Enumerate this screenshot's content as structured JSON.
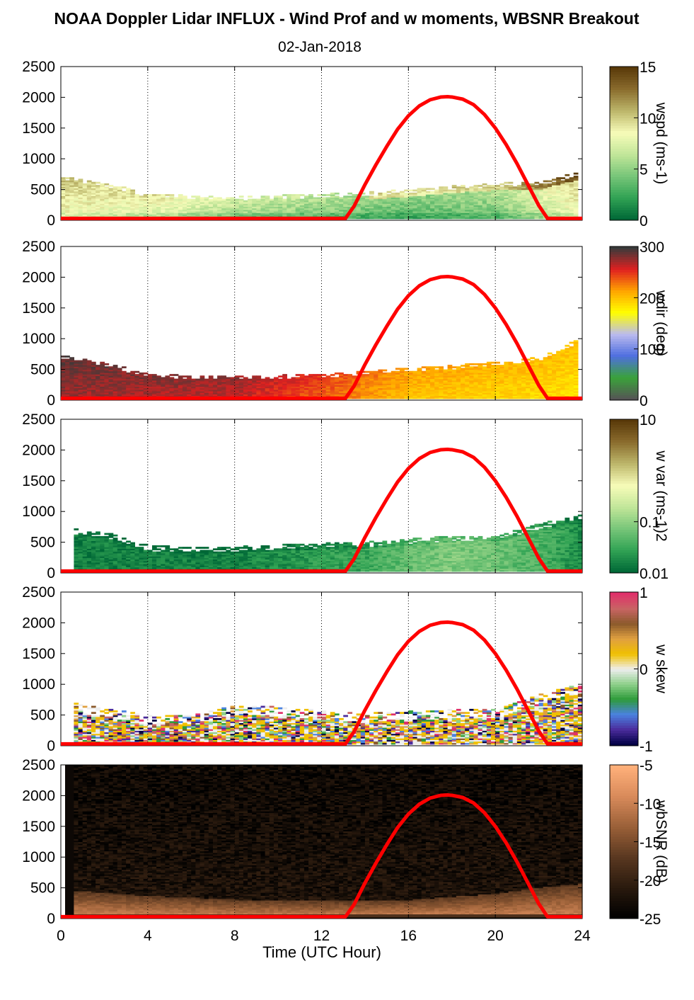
{
  "title": "NOAA Doppler Lidar INFLUX - Wind Prof and w moments, WBSNR Breakout",
  "subtitle": "02-Jan-2018",
  "chart_data": {
    "type": "heatmap",
    "xlabel": "Time (UTC Hour)",
    "xlim": [
      0,
      24
    ],
    "xticks": [
      "0",
      "4",
      "8",
      "12",
      "16",
      "20",
      "24"
    ],
    "ylim": [
      0,
      2500
    ],
    "yticks": [
      "0",
      "500",
      "1000",
      "1500",
      "2000",
      "2500"
    ],
    "sun_elevation_curve": {
      "color": "#ff0000",
      "hours": [
        13.1,
        13.5,
        14,
        14.5,
        15,
        15.5,
        16,
        16.5,
        17,
        17.5,
        17.8,
        18,
        18.5,
        19,
        19.5,
        20,
        20.5,
        21,
        21.5,
        22,
        22.4
      ],
      "values": [
        0,
        230,
        580,
        900,
        1200,
        1480,
        1700,
        1860,
        1960,
        2005,
        2010,
        2005,
        1970,
        1880,
        1720,
        1500,
        1230,
        920,
        580,
        240,
        0
      ],
      "baseline": 30
    },
    "panels": [
      {
        "id": "wspd",
        "colorbar_label": "wspd (ms-1)",
        "colorbar_ticks": [
          "0",
          "5",
          "10",
          "15"
        ],
        "colorbar_range": [
          0,
          15
        ],
        "colormap": [
          "#006837",
          "#31a354",
          "#78c679",
          "#c2e699",
          "#f7fcb9",
          "#bdb76b",
          "#8b6d2e",
          "#5a3a0a"
        ],
        "boundary_layer_top": [
          [
            0,
            700
          ],
          [
            2,
            600
          ],
          [
            4,
            420
          ],
          [
            6,
            400
          ],
          [
            8,
            380
          ],
          [
            10,
            400
          ],
          [
            12,
            420
          ],
          [
            14,
            450
          ],
          [
            16,
            500
          ],
          [
            18,
            560
          ],
          [
            20,
            600
          ],
          [
            22,
            620
          ],
          [
            23.8,
            780
          ]
        ],
        "typical_values": [
          [
            0,
            8
          ],
          [
            4,
            7
          ],
          [
            8,
            5
          ],
          [
            12,
            4
          ],
          [
            16,
            3
          ],
          [
            20,
            4
          ],
          [
            23.8,
            8
          ]
        ]
      },
      {
        "id": "wdir",
        "colorbar_label": "wdir (deg)",
        "colorbar_ticks": [
          "0",
          "100",
          "200",
          "300"
        ],
        "colorbar_range": [
          0,
          360
        ],
        "colormap": [
          "#555555",
          "#3aa33a",
          "#4f6fe0",
          "#bbbbee",
          "#ffff00",
          "#ffa500",
          "#e02020",
          "#3a3a3a"
        ],
        "boundary_layer_top": [
          [
            0,
            720
          ],
          [
            2,
            600
          ],
          [
            4,
            420
          ],
          [
            6,
            400
          ],
          [
            8,
            380
          ],
          [
            10,
            400
          ],
          [
            12,
            420
          ],
          [
            14,
            470
          ],
          [
            16,
            520
          ],
          [
            18,
            560
          ],
          [
            20,
            620
          ],
          [
            22,
            700
          ],
          [
            23.8,
            1000
          ]
        ],
        "typical_values": [
          [
            0,
            330
          ],
          [
            4,
            320
          ],
          [
            8,
            315
          ],
          [
            12,
            280
          ],
          [
            16,
            240
          ],
          [
            20,
            230
          ],
          [
            23.8,
            220
          ]
        ]
      },
      {
        "id": "w_var",
        "colorbar_label": "w var (ms-1)2",
        "colorbar_ticks": [
          "0.01",
          "0.1",
          "10"
        ],
        "colorbar_range": [
          0.01,
          10
        ],
        "colormap": [
          "#006837",
          "#31a354",
          "#78c679",
          "#c2e699",
          "#f7fcb9",
          "#bdb76b",
          "#8b6d2e",
          "#5a3a0a"
        ],
        "boundary_layer_top": [
          [
            0.2,
            720
          ],
          [
            2,
            650
          ],
          [
            4,
            430
          ],
          [
            6,
            420
          ],
          [
            8,
            420
          ],
          [
            10,
            450
          ],
          [
            12,
            480
          ],
          [
            14,
            500
          ],
          [
            16,
            550
          ],
          [
            18,
            600
          ],
          [
            20,
            600
          ],
          [
            22,
            800
          ],
          [
            24,
            950
          ]
        ],
        "typical_values": [
          [
            0,
            0.015
          ],
          [
            8,
            0.015
          ],
          [
            14,
            0.03
          ],
          [
            18,
            0.08
          ],
          [
            20,
            0.06
          ],
          [
            24,
            0.015
          ]
        ]
      },
      {
        "id": "w_skew",
        "colorbar_label": "w skew",
        "colorbar_ticks": [
          "-1",
          "0",
          "1"
        ],
        "colorbar_range": [
          -1,
          1
        ],
        "colormap": [
          "#000044",
          "#4b2c9c",
          "#4a82e0",
          "#2e9b3a",
          "#8ed08a",
          "#eeeeee",
          "#f0c000",
          "#e0a040",
          "#8b5a2b",
          "#c86464",
          "#e0306a"
        ],
        "boundary_layer_top": [
          [
            0.2,
            700
          ],
          [
            2,
            600
          ],
          [
            4,
            480
          ],
          [
            6,
            500
          ],
          [
            8,
            650
          ],
          [
            10,
            620
          ],
          [
            12,
            560
          ],
          [
            14,
            520
          ],
          [
            16,
            560
          ],
          [
            18,
            580
          ],
          [
            20,
            600
          ],
          [
            22,
            850
          ],
          [
            24,
            1000
          ]
        ]
      },
      {
        "id": "wbsnr",
        "colorbar_label": "wbSNR (dB)",
        "colorbar_ticks": [
          "-25",
          "-20",
          "-15",
          "-10",
          "-5"
        ],
        "colorbar_range": [
          -25,
          -5
        ],
        "colormap": [
          "#000000",
          "#2a1a0e",
          "#5a3820",
          "#9a6038",
          "#d88a5a",
          "#ffb07a"
        ],
        "boundary_layer_top": [
          [
            0.2,
            450
          ],
          [
            4,
            360
          ],
          [
            8,
            300
          ],
          [
            12,
            280
          ],
          [
            16,
            300
          ],
          [
            18,
            350
          ],
          [
            20,
            400
          ],
          [
            22,
            500
          ],
          [
            24,
            560
          ]
        ]
      }
    ]
  }
}
